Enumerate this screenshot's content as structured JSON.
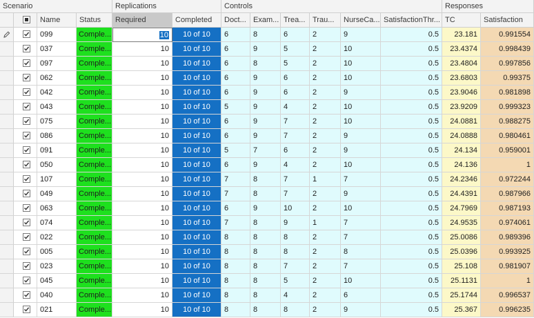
{
  "groups": {
    "scenario": "Scenario",
    "replications": "Replications",
    "controls": "Controls",
    "responses": "Responses"
  },
  "columns": {
    "name": "Name",
    "status": "Status",
    "required": "Required",
    "completed": "Completed",
    "doctors": "Doct...",
    "exam": "Exam...",
    "treatment": "Trea...",
    "trauma": "Trau...",
    "nurse": "NurseCa...",
    "threshold": "SatisfactionThr...",
    "tc": "TC",
    "satisfaction": "Satisfaction"
  },
  "rows": [
    {
      "name": "099",
      "status": "Comple...",
      "required": "10",
      "completed": "10 of 10",
      "doctors": "6",
      "exam": "8",
      "treatment": "6",
      "trauma": "2",
      "nurse": "9",
      "threshold": "0.5",
      "tc": "23.181",
      "satisfaction": "0.991554"
    },
    {
      "name": "037",
      "status": "Comple...",
      "required": "10",
      "completed": "10 of 10",
      "doctors": "6",
      "exam": "9",
      "treatment": "5",
      "trauma": "2",
      "nurse": "10",
      "threshold": "0.5",
      "tc": "23.4374",
      "satisfaction": "0.998439"
    },
    {
      "name": "097",
      "status": "Comple...",
      "required": "10",
      "completed": "10 of 10",
      "doctors": "6",
      "exam": "8",
      "treatment": "5",
      "trauma": "2",
      "nurse": "10",
      "threshold": "0.5",
      "tc": "23.4804",
      "satisfaction": "0.997856"
    },
    {
      "name": "062",
      "status": "Comple...",
      "required": "10",
      "completed": "10 of 10",
      "doctors": "6",
      "exam": "9",
      "treatment": "6",
      "trauma": "2",
      "nurse": "10",
      "threshold": "0.5",
      "tc": "23.6803",
      "satisfaction": "0.99375"
    },
    {
      "name": "042",
      "status": "Comple...",
      "required": "10",
      "completed": "10 of 10",
      "doctors": "6",
      "exam": "9",
      "treatment": "6",
      "trauma": "2",
      "nurse": "9",
      "threshold": "0.5",
      "tc": "23.9046",
      "satisfaction": "0.981898"
    },
    {
      "name": "043",
      "status": "Comple...",
      "required": "10",
      "completed": "10 of 10",
      "doctors": "5",
      "exam": "9",
      "treatment": "4",
      "trauma": "2",
      "nurse": "10",
      "threshold": "0.5",
      "tc": "23.9209",
      "satisfaction": "0.999323"
    },
    {
      "name": "075",
      "status": "Comple...",
      "required": "10",
      "completed": "10 of 10",
      "doctors": "6",
      "exam": "9",
      "treatment": "7",
      "trauma": "2",
      "nurse": "10",
      "threshold": "0.5",
      "tc": "24.0881",
      "satisfaction": "0.988275"
    },
    {
      "name": "086",
      "status": "Comple...",
      "required": "10",
      "completed": "10 of 10",
      "doctors": "6",
      "exam": "9",
      "treatment": "7",
      "trauma": "2",
      "nurse": "9",
      "threshold": "0.5",
      "tc": "24.0888",
      "satisfaction": "0.980461"
    },
    {
      "name": "091",
      "status": "Comple...",
      "required": "10",
      "completed": "10 of 10",
      "doctors": "5",
      "exam": "7",
      "treatment": "6",
      "trauma": "2",
      "nurse": "9",
      "threshold": "0.5",
      "tc": "24.134",
      "satisfaction": "0.959001"
    },
    {
      "name": "050",
      "status": "Comple...",
      "required": "10",
      "completed": "10 of 10",
      "doctors": "6",
      "exam": "9",
      "treatment": "4",
      "trauma": "2",
      "nurse": "10",
      "threshold": "0.5",
      "tc": "24.136",
      "satisfaction": "1"
    },
    {
      "name": "107",
      "status": "Comple...",
      "required": "10",
      "completed": "10 of 10",
      "doctors": "7",
      "exam": "8",
      "treatment": "7",
      "trauma": "1",
      "nurse": "7",
      "threshold": "0.5",
      "tc": "24.2346",
      "satisfaction": "0.972244"
    },
    {
      "name": "049",
      "status": "Comple...",
      "required": "10",
      "completed": "10 of 10",
      "doctors": "7",
      "exam": "8",
      "treatment": "7",
      "trauma": "2",
      "nurse": "9",
      "threshold": "0.5",
      "tc": "24.4391",
      "satisfaction": "0.987966"
    },
    {
      "name": "063",
      "status": "Comple...",
      "required": "10",
      "completed": "10 of 10",
      "doctors": "6",
      "exam": "9",
      "treatment": "10",
      "trauma": "2",
      "nurse": "10",
      "threshold": "0.5",
      "tc": "24.7969",
      "satisfaction": "0.987193"
    },
    {
      "name": "074",
      "status": "Comple...",
      "required": "10",
      "completed": "10 of 10",
      "doctors": "7",
      "exam": "8",
      "treatment": "9",
      "trauma": "1",
      "nurse": "7",
      "threshold": "0.5",
      "tc": "24.9535",
      "satisfaction": "0.974061"
    },
    {
      "name": "022",
      "status": "Comple...",
      "required": "10",
      "completed": "10 of 10",
      "doctors": "8",
      "exam": "8",
      "treatment": "8",
      "trauma": "2",
      "nurse": "7",
      "threshold": "0.5",
      "tc": "25.0086",
      "satisfaction": "0.989396"
    },
    {
      "name": "005",
      "status": "Comple...",
      "required": "10",
      "completed": "10 of 10",
      "doctors": "8",
      "exam": "8",
      "treatment": "8",
      "trauma": "2",
      "nurse": "8",
      "threshold": "0.5",
      "tc": "25.0396",
      "satisfaction": "0.993925"
    },
    {
      "name": "023",
      "status": "Comple...",
      "required": "10",
      "completed": "10 of 10",
      "doctors": "8",
      "exam": "8",
      "treatment": "7",
      "trauma": "2",
      "nurse": "7",
      "threshold": "0.5",
      "tc": "25.108",
      "satisfaction": "0.981907"
    },
    {
      "name": "045",
      "status": "Comple...",
      "required": "10",
      "completed": "10 of 10",
      "doctors": "8",
      "exam": "8",
      "treatment": "5",
      "trauma": "2",
      "nurse": "10",
      "threshold": "0.5",
      "tc": "25.1131",
      "satisfaction": "1"
    },
    {
      "name": "040",
      "status": "Comple...",
      "required": "10",
      "completed": "10 of 10",
      "doctors": "8",
      "exam": "8",
      "treatment": "4",
      "trauma": "2",
      "nurse": "6",
      "threshold": "0.5",
      "tc": "25.1744",
      "satisfaction": "0.996537"
    },
    {
      "name": "021",
      "status": "Comple...",
      "required": "10",
      "completed": "10 of 10",
      "doctors": "8",
      "exam": "8",
      "treatment": "8",
      "trauma": "2",
      "nurse": "9",
      "threshold": "0.5",
      "tc": "25.367",
      "satisfaction": "0.996235"
    }
  ],
  "colors": {
    "status_complete": "#1ee01e",
    "completed_bar": "#1570c4",
    "controls_bg": "#e0fbfd",
    "tc_bg": "#fcf8c8",
    "satisfaction_bg": "#f4d9b3"
  },
  "icons": {
    "edit_row": "pencil-icon",
    "check": "checkbox-checked-icon"
  }
}
